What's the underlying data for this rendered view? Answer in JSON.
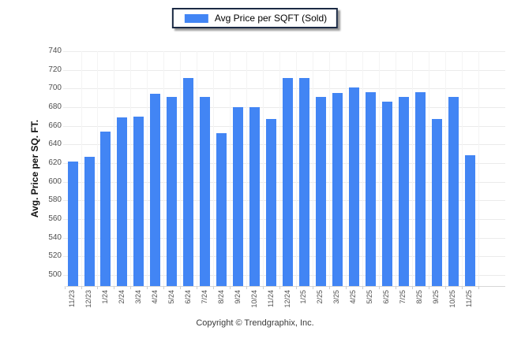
{
  "legend": {
    "label": "Avg Price per SQFT (Sold)",
    "swatch_color": "#4285f4"
  },
  "chart_data": {
    "type": "bar",
    "title": "",
    "xlabel": "",
    "ylabel": "Avg. Price per SQ. FT.",
    "categories": [
      "11/23",
      "12/23",
      "1/24",
      "2/24",
      "3/24",
      "4/24",
      "5/24",
      "6/24",
      "7/24",
      "8/24",
      "9/24",
      "10/24",
      "11/24",
      "12/24",
      "1/25",
      "2/25",
      "3/25",
      "4/25",
      "5/25",
      "6/25",
      "7/25",
      "8/25",
      "9/25",
      "10/25",
      "11/25"
    ],
    "values": [
      622,
      627,
      654,
      669,
      670,
      694,
      691,
      711,
      691,
      652,
      680,
      680,
      667,
      711,
      711,
      691,
      695,
      701,
      696,
      686,
      691,
      696,
      667,
      691,
      628
    ],
    "series_name": "Avg Price per SQFT (Sold)",
    "ylim": [
      500,
      740
    ],
    "yticks": [
      500,
      520,
      540,
      560,
      580,
      600,
      620,
      640,
      660,
      680,
      700,
      720,
      740
    ],
    "grid": "horizontal",
    "legend_position": "top-center",
    "bar_color": "#4285f4",
    "gridline_color": "#ebebeb"
  },
  "footer": {
    "copyright": "Copyright © Trendgraphix, Inc."
  }
}
